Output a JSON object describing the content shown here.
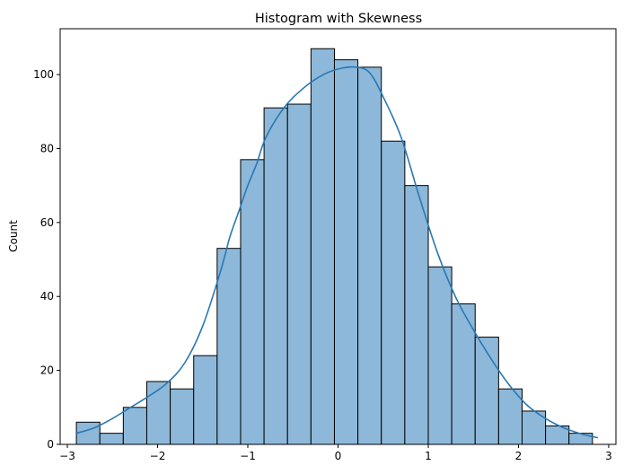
{
  "chart_data": {
    "type": "bar",
    "subtype": "histogram-with-kde",
    "title": "Histogram with Skewness",
    "xlabel": "",
    "ylabel": "Count",
    "xlim": [
      -3.08,
      3.08
    ],
    "ylim": [
      0,
      112.4
    ],
    "x_ticks": [
      -3,
      -2,
      -1,
      0,
      1,
      2,
      3
    ],
    "y_ticks": [
      0,
      20,
      40,
      60,
      80,
      100
    ],
    "grid": false,
    "bar_color": "#8db8d9",
    "bar_edge_color": "#000000",
    "kde_color": "#2878b5",
    "bin_edges": [
      -2.9,
      -2.64,
      -2.38,
      -2.12,
      -1.86,
      -1.6,
      -1.34,
      -1.08,
      -0.82,
      -0.56,
      -0.3,
      -0.04,
      0.22,
      0.48,
      0.74,
      1.0,
      1.26,
      1.52,
      1.78,
      2.04,
      2.3,
      2.56,
      2.82
    ],
    "counts": [
      6,
      3,
      10,
      17,
      15,
      24,
      53,
      77,
      91,
      92,
      107,
      104,
      102,
      82,
      70,
      48,
      38,
      29,
      15,
      9,
      5,
      3
    ],
    "kde": {
      "x": [
        -2.9,
        -2.7,
        -2.5,
        -2.3,
        -2.1,
        -1.9,
        -1.7,
        -1.5,
        -1.3,
        -1.2,
        -1.1,
        -1.0,
        -0.9,
        -0.8,
        -0.6,
        -0.4,
        -0.2,
        0.0,
        0.2,
        0.35,
        0.5,
        0.7,
        0.9,
        1.1,
        1.3,
        1.5,
        1.7,
        1.9,
        2.1,
        2.3,
        2.5,
        2.7,
        2.88
      ],
      "y": [
        3,
        4.5,
        7,
        10,
        13,
        16.5,
        22,
        32,
        47,
        56,
        63,
        70,
        76,
        83,
        91,
        96,
        99.5,
        101.5,
        102,
        100.5,
        94,
        83,
        67,
        52,
        40,
        31,
        23,
        16,
        10.5,
        7,
        4.5,
        2.8,
        1.8
      ]
    }
  }
}
